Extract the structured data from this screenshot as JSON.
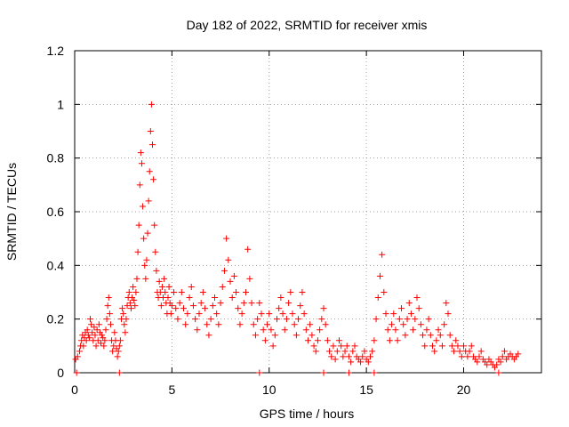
{
  "chart_data": {
    "type": "scatter",
    "title": "Day 182 of 2022, SRMTID for receiver xmis",
    "xlabel": "GPS time / hours",
    "ylabel": "SRMTID / TECUs",
    "xlim": [
      0,
      24
    ],
    "ylim": [
      0,
      1.2
    ],
    "x_ticks": [
      0,
      5,
      10,
      15,
      20
    ],
    "x_tick_labels": [
      "0",
      "5",
      "10",
      "15",
      "20"
    ],
    "y_ticks": [
      0,
      0.2,
      0.4,
      0.6,
      0.8,
      1.0,
      1.2
    ],
    "y_tick_labels": [
      "0",
      "0.2",
      "0.4",
      "0.6",
      "0.8",
      "1",
      "1.2"
    ],
    "grid": true,
    "marker": "plus",
    "color": "#ff0000",
    "series": [
      {
        "name": "SRMTID",
        "x": [
          0.05,
          0.15,
          0.25,
          0.3,
          0.35,
          0.4,
          0.45,
          0.5,
          0.55,
          0.6,
          0.65,
          0.7,
          0.75,
          0.8,
          0.85,
          0.9,
          0.95,
          1.0,
          1.05,
          1.1,
          1.15,
          1.2,
          1.25,
          1.3,
          1.35,
          1.4,
          1.45,
          1.5,
          1.55,
          1.6,
          1.65,
          1.7,
          1.75,
          1.8,
          1.85,
          1.9,
          1.95,
          2.0,
          2.05,
          2.1,
          2.15,
          2.2,
          2.25,
          2.3,
          2.35,
          2.4,
          2.45,
          2.5,
          2.55,
          2.6,
          2.65,
          2.7,
          2.75,
          2.8,
          2.85,
          2.9,
          2.95,
          3.0,
          3.05,
          3.1,
          3.15,
          3.2,
          3.25,
          3.3,
          3.35,
          3.4,
          3.45,
          3.5,
          3.55,
          3.6,
          3.65,
          3.7,
          3.75,
          3.8,
          3.85,
          3.9,
          3.95,
          4.0,
          4.05,
          4.1,
          4.15,
          4.2,
          4.25,
          4.3,
          4.35,
          4.4,
          4.45,
          4.5,
          4.55,
          4.6,
          4.65,
          4.7,
          4.75,
          4.8,
          4.85,
          4.9,
          4.95,
          5.0,
          5.1,
          5.2,
          5.3,
          5.4,
          5.5,
          5.6,
          5.7,
          5.8,
          5.9,
          6.0,
          6.1,
          6.2,
          6.3,
          6.4,
          6.5,
          6.6,
          6.7,
          6.8,
          6.9,
          7.0,
          7.1,
          7.2,
          7.3,
          7.4,
          7.5,
          7.6,
          7.7,
          7.8,
          7.9,
          8.0,
          8.1,
          8.2,
          8.3,
          8.4,
          8.5,
          8.6,
          8.7,
          8.8,
          8.9,
          9.0,
          9.1,
          9.2,
          9.3,
          9.4,
          9.5,
          9.6,
          9.7,
          9.8,
          9.9,
          10.0,
          10.1,
          10.2,
          10.3,
          10.4,
          10.5,
          10.6,
          10.7,
          10.8,
          10.9,
          11.0,
          11.1,
          11.2,
          11.3,
          11.4,
          11.5,
          11.6,
          11.7,
          11.8,
          11.9,
          12.0,
          12.1,
          12.2,
          12.3,
          12.4,
          12.5,
          12.6,
          12.7,
          12.8,
          12.9,
          13.0,
          13.1,
          13.2,
          13.3,
          13.4,
          13.5,
          13.6,
          13.7,
          13.8,
          13.9,
          14.0,
          14.1,
          14.2,
          14.3,
          14.4,
          14.5,
          14.6,
          14.7,
          14.8,
          14.9,
          15.0,
          15.1,
          15.2,
          15.3,
          15.4,
          15.5,
          15.6,
          15.7,
          15.8,
          15.9,
          16.0,
          16.1,
          16.2,
          16.3,
          16.4,
          16.5,
          16.6,
          16.7,
          16.8,
          16.9,
          17.0,
          17.1,
          17.2,
          17.3,
          17.4,
          17.5,
          17.6,
          17.7,
          17.8,
          17.9,
          18.0,
          18.1,
          18.2,
          18.3,
          18.4,
          18.5,
          18.6,
          18.7,
          18.8,
          18.9,
          19.0,
          19.1,
          19.2,
          19.3,
          19.4,
          19.5,
          19.6,
          19.7,
          19.8,
          19.9,
          20.0,
          20.1,
          20.2,
          20.3,
          20.4,
          20.5,
          20.6,
          20.7,
          20.8,
          20.9,
          21.0,
          21.1,
          21.2,
          21.3,
          21.4,
          21.5,
          21.6,
          21.7,
          21.8,
          21.9,
          22.0,
          22.1,
          22.2,
          22.3,
          22.4,
          22.5,
          22.6,
          22.7,
          22.8,
          0.1,
          2.3,
          9.5,
          12.8,
          14.1,
          15.4,
          21.8
        ],
        "y": [
          0.05,
          0.06,
          0.08,
          0.1,
          0.12,
          0.14,
          0.1,
          0.13,
          0.15,
          0.12,
          0.16,
          0.14,
          0.13,
          0.2,
          0.18,
          0.15,
          0.12,
          0.17,
          0.14,
          0.1,
          0.16,
          0.12,
          0.18,
          0.15,
          0.11,
          0.14,
          0.13,
          0.1,
          0.12,
          0.16,
          0.2,
          0.25,
          0.28,
          0.22,
          0.18,
          0.12,
          0.08,
          0.1,
          0.15,
          0.12,
          0.09,
          0.06,
          0.08,
          0.1,
          0.12,
          0.2,
          0.24,
          0.22,
          0.18,
          0.15,
          0.2,
          0.25,
          0.28,
          0.3,
          0.26,
          0.24,
          0.28,
          0.32,
          0.27,
          0.25,
          0.3,
          0.35,
          0.45,
          0.55,
          0.7,
          0.82,
          0.78,
          0.62,
          0.5,
          0.4,
          0.35,
          0.42,
          0.52,
          0.64,
          0.75,
          0.9,
          1.0,
          0.85,
          0.72,
          0.55,
          0.45,
          0.38,
          0.3,
          0.28,
          0.34,
          0.3,
          0.25,
          0.32,
          0.28,
          0.35,
          0.3,
          0.26,
          0.22,
          0.28,
          0.32,
          0.26,
          0.22,
          0.25,
          0.3,
          0.24,
          0.2,
          0.26,
          0.3,
          0.24,
          0.18,
          0.22,
          0.28,
          0.32,
          0.25,
          0.2,
          0.16,
          0.22,
          0.26,
          0.3,
          0.24,
          0.18,
          0.14,
          0.2,
          0.25,
          0.28,
          0.22,
          0.18,
          0.26,
          0.32,
          0.38,
          0.5,
          0.42,
          0.34,
          0.28,
          0.36,
          0.3,
          0.24,
          0.18,
          0.22,
          0.26,
          0.3,
          0.46,
          0.35,
          0.26,
          0.18,
          0.14,
          0.2,
          0.26,
          0.22,
          0.16,
          0.12,
          0.18,
          0.22,
          0.16,
          0.1,
          0.14,
          0.2,
          0.24,
          0.28,
          0.22,
          0.16,
          0.2,
          0.26,
          0.3,
          0.22,
          0.18,
          0.14,
          0.2,
          0.25,
          0.3,
          0.22,
          0.16,
          0.12,
          0.18,
          0.14,
          0.1,
          0.08,
          0.12,
          0.16,
          0.2,
          0.24,
          0.18,
          0.12,
          0.08,
          0.06,
          0.1,
          0.05,
          0.08,
          0.12,
          0.1,
          0.06,
          0.08,
          0.1,
          0.06,
          0.04,
          0.08,
          0.1,
          0.06,
          0.05,
          0.04,
          0.06,
          0.08,
          0.05,
          0.04,
          0.06,
          0.08,
          0.12,
          0.2,
          0.28,
          0.36,
          0.44,
          0.3,
          0.22,
          0.16,
          0.12,
          0.18,
          0.22,
          0.16,
          0.12,
          0.2,
          0.24,
          0.18,
          0.14,
          0.2,
          0.26,
          0.22,
          0.16,
          0.2,
          0.28,
          0.24,
          0.18,
          0.14,
          0.1,
          0.16,
          0.2,
          0.14,
          0.1,
          0.08,
          0.12,
          0.16,
          0.14,
          0.1,
          0.18,
          0.26,
          0.22,
          0.14,
          0.1,
          0.08,
          0.12,
          0.1,
          0.08,
          0.06,
          0.1,
          0.08,
          0.06,
          0.08,
          0.1,
          0.06,
          0.05,
          0.04,
          0.06,
          0.08,
          0.05,
          0.04,
          0.03,
          0.05,
          0.04,
          0.03,
          0.02,
          0.03,
          0.05,
          0.04,
          0.06,
          0.08,
          0.05,
          0.06,
          0.07,
          0.06,
          0.05,
          0.06,
          0.07,
          0.0,
          0.0,
          0.0,
          0.0,
          0.0,
          0.0,
          0.0
        ]
      }
    ]
  }
}
